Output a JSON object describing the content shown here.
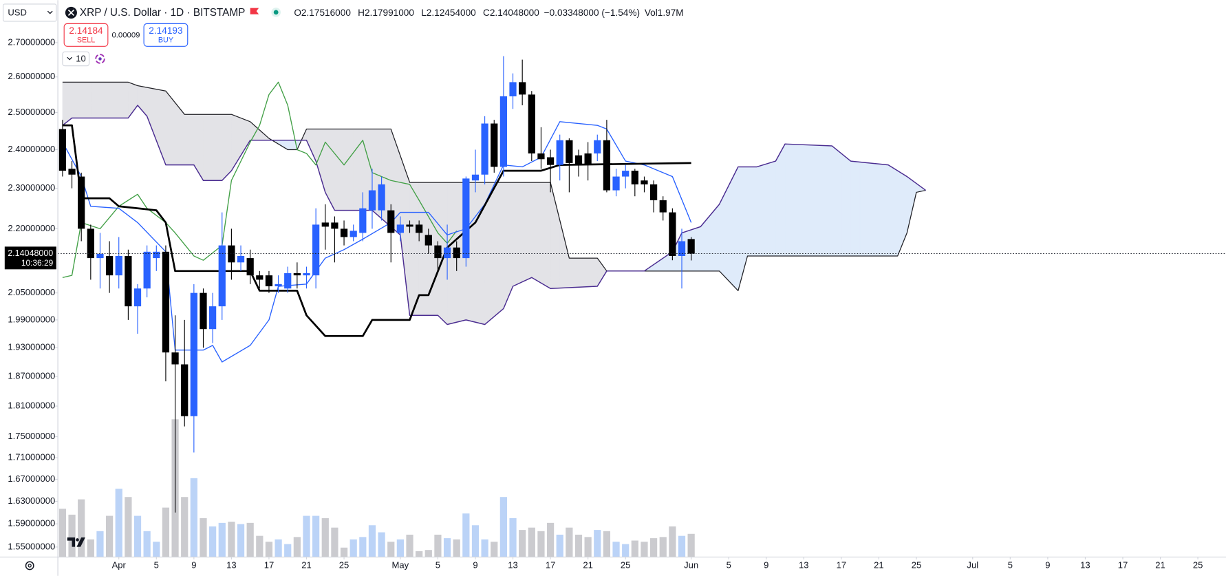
{
  "toolbar": {
    "currency": "USD",
    "symbol": "XRP / U.S. Dollar · 1D · BITSTAMP",
    "ohlc": [
      {
        "key": "O",
        "value": "2.17516000"
      },
      {
        "key": "H",
        "value": "2.17991000"
      },
      {
        "key": "L",
        "value": "2.12454000"
      },
      {
        "key": "C",
        "value": "2.14048000"
      }
    ],
    "change": "−0.03348000 (−1.54%)",
    "volume_key": "Vol",
    "volume": "1.97M"
  },
  "trade": {
    "sell_price": "2.14184",
    "sell": "SELL",
    "spread": "0.00009",
    "buy_price": "2.14193",
    "buy": "BUY",
    "indicator_count": "10"
  },
  "chart_data": {
    "type": "candlestick",
    "yscale": "log",
    "x": [
      "03-26",
      "03-27",
      "03-28",
      "03-29",
      "03-30",
      "03-31",
      "04-01",
      "04-02",
      "04-03",
      "04-04",
      "04-05",
      "04-06",
      "04-07",
      "04-08",
      "04-09",
      "04-10",
      "04-11",
      "04-12",
      "04-13",
      "04-14",
      "04-15",
      "04-16",
      "04-17",
      "04-18",
      "04-19",
      "04-20",
      "04-21",
      "04-22",
      "04-23",
      "04-24",
      "04-25",
      "04-26",
      "04-27",
      "04-28",
      "04-29",
      "04-30",
      "05-01",
      "05-02",
      "05-03",
      "05-04",
      "05-05",
      "05-06",
      "05-07",
      "05-08",
      "05-09",
      "05-10",
      "05-11",
      "05-12",
      "05-13",
      "05-14",
      "05-15",
      "05-16",
      "05-17",
      "05-18",
      "05-19",
      "05-20",
      "05-21",
      "05-22",
      "05-23",
      "05-24",
      "05-25",
      "05-26",
      "05-27",
      "05-28",
      "05-29",
      "05-30",
      "05-31",
      "06-01"
    ],
    "open": [
      2.455,
      2.35,
      2.33,
      2.2,
      2.13,
      2.135,
      2.09,
      2.135,
      2.02,
      2.06,
      2.13,
      2.145,
      1.92,
      1.895,
      1.79,
      2.05,
      1.97,
      2.02,
      2.16,
      2.12,
      2.13,
      2.09,
      2.09,
      2.065,
      2.06,
      2.095,
      2.09,
      2.09,
      2.215,
      2.215,
      2.2,
      2.18,
      2.19,
      2.245,
      2.245,
      2.245,
      2.19,
      2.21,
      2.21,
      2.185,
      2.16,
      2.13,
      2.155,
      2.13,
      2.32,
      2.335,
      2.47,
      2.355,
      2.545,
      2.585,
      2.55,
      2.39,
      2.38,
      2.36,
      2.425,
      2.385,
      2.39,
      2.39,
      2.425,
      2.295,
      2.33,
      2.345,
      2.32,
      2.31,
      2.27,
      2.24,
      2.135,
      2.17516
    ],
    "high": [
      2.48,
      2.37,
      2.34,
      2.21,
      2.19,
      2.17,
      2.18,
      2.15,
      2.07,
      2.16,
      2.16,
      2.16,
      2.0,
      1.99,
      2.07,
      2.06,
      2.05,
      2.24,
      2.2,
      2.16,
      2.15,
      2.1,
      2.1,
      2.09,
      2.11,
      2.12,
      2.11,
      2.25,
      2.26,
      2.23,
      2.22,
      2.21,
      2.29,
      2.35,
      2.33,
      2.26,
      2.23,
      2.22,
      2.22,
      2.2,
      2.17,
      2.21,
      2.17,
      2.33,
      2.4,
      2.49,
      2.48,
      2.66,
      2.61,
      2.65,
      2.56,
      2.46,
      2.4,
      2.44,
      2.43,
      2.4,
      2.42,
      2.44,
      2.48,
      2.35,
      2.36,
      2.35,
      2.33,
      2.32,
      2.28,
      2.25,
      2.2,
      2.17991
    ],
    "low": [
      2.33,
      2.3,
      2.17,
      2.08,
      2.06,
      2.05,
      2.06,
      1.99,
      1.96,
      2.04,
      2.1,
      1.86,
      1.61,
      1.77,
      1.72,
      1.93,
      1.94,
      1.99,
      2.08,
      2.1,
      2.07,
      2.06,
      2.05,
      2.05,
      2.05,
      2.06,
      2.06,
      2.06,
      2.15,
      2.12,
      2.16,
      2.17,
      2.17,
      2.2,
      2.22,
      2.12,
      2.17,
      2.19,
      2.17,
      2.14,
      2.1,
      2.08,
      2.1,
      2.11,
      2.29,
      2.31,
      2.34,
      2.33,
      2.51,
      2.52,
      2.37,
      2.35,
      2.29,
      2.32,
      2.29,
      2.33,
      2.32,
      2.37,
      2.29,
      2.28,
      2.3,
      2.28,
      2.29,
      2.24,
      2.22,
      2.125,
      2.06,
      2.12454
    ],
    "close": [
      2.345,
      2.335,
      2.2,
      2.13,
      2.14,
      2.09,
      2.135,
      2.02,
      2.06,
      2.145,
      2.145,
      1.92,
      1.895,
      1.79,
      2.05,
      1.97,
      2.02,
      2.16,
      2.12,
      2.135,
      2.09,
      2.08,
      2.065,
      2.07,
      2.095,
      2.09,
      2.095,
      2.21,
      2.205,
      2.2,
      2.18,
      2.195,
      2.25,
      2.295,
      2.31,
      2.19,
      2.21,
      2.205,
      2.19,
      2.16,
      2.13,
      2.155,
      2.13,
      2.325,
      2.335,
      2.47,
      2.355,
      2.545,
      2.585,
      2.55,
      2.39,
      2.375,
      2.36,
      2.425,
      2.365,
      2.36,
      2.36,
      2.425,
      2.295,
      2.33,
      2.345,
      2.31,
      2.31,
      2.27,
      2.24,
      2.135,
      2.17,
      2.14048
    ],
    "up_color": "#2962ff",
    "down_color": "#000000",
    "volume": {
      "values": [
        4.1,
        3.6,
        4.9,
        1.5,
        2.2,
        3.5,
        5.8,
        5.1,
        3.5,
        2.2,
        1.3,
        4.2,
        11.7,
        5.1,
        6.7,
        3.3,
        2.6,
        2.9,
        3.0,
        2.8,
        2.9,
        1.8,
        1.3,
        1.5,
        1.1,
        1.7,
        3.5,
        3.5,
        3.3,
        2.5,
        0.8,
        1.5,
        1.7,
        2.7,
        2.1,
        1.3,
        1.5,
        1.9,
        0.5,
        0.6,
        1.9,
        1.6,
        1.5,
        3.7,
        2.7,
        1.5,
        1.3,
        5.1,
        3.3,
        2.3,
        2.5,
        2.2,
        2.9,
        1.9,
        2.5,
        1.9,
        1.7,
        2.3,
        2.2,
        1.3,
        1.1,
        1.4,
        1.3,
        1.6,
        1.7,
        2.6,
        1.8,
        1.97
      ],
      "ylim": [
        0,
        47.3
      ],
      "up_color": "#bbd3f7",
      "down_color": "#cbcbcf"
    },
    "tenkan": {
      "color": "#2962ff",
      "width": 1.2,
      "x": [
        "03-26",
        "03-28",
        "03-29",
        "04-01",
        "04-03",
        "04-06",
        "04-07",
        "04-10",
        "04-11",
        "04-12",
        "04-15",
        "04-17",
        "04-18",
        "04-21",
        "04-23",
        "04-25",
        "04-27",
        "04-30",
        "05-01",
        "05-04",
        "05-06",
        "05-08",
        "05-10",
        "05-12",
        "05-14",
        "05-16",
        "05-18",
        "05-22",
        "05-23",
        "05-25",
        "05-27",
        "05-30",
        "06-01"
      ],
      "values": [
        2.42,
        2.33,
        2.255,
        2.25,
        2.215,
        2.145,
        1.925,
        1.925,
        1.935,
        1.9,
        1.935,
        1.99,
        2.065,
        2.07,
        2.13,
        2.15,
        2.175,
        2.215,
        2.24,
        2.24,
        2.185,
        2.2,
        2.26,
        2.36,
        2.355,
        2.38,
        2.475,
        2.465,
        2.455,
        2.37,
        2.36,
        2.33,
        2.215
      ]
    },
    "kijun": {
      "color": "#000000",
      "width": 2.4,
      "x": [
        "03-26",
        "03-27",
        "03-28",
        "03-31",
        "04-01",
        "04-05",
        "04-06",
        "04-07",
        "04-15",
        "04-16",
        "04-20",
        "04-21",
        "04-23",
        "04-27",
        "04-28",
        "05-02",
        "05-03",
        "05-04",
        "05-06",
        "05-08",
        "05-09",
        "05-12",
        "05-16",
        "05-18",
        "06-01"
      ],
      "values": [
        2.465,
        2.465,
        2.275,
        2.275,
        2.255,
        2.245,
        2.215,
        2.1,
        2.1,
        2.055,
        2.055,
        2.0,
        1.955,
        1.955,
        1.99,
        1.99,
        2.045,
        2.045,
        2.155,
        2.195,
        2.215,
        2.345,
        2.345,
        2.36,
        2.365
      ]
    },
    "chikou": {
      "color": "#43a047",
      "width": 1.2,
      "x": [
        "03-26",
        "03-27",
        "03-28",
        "03-30",
        "04-01",
        "04-02",
        "04-03",
        "04-04",
        "04-06",
        "04-07",
        "04-09",
        "04-10",
        "04-12",
        "04-13",
        "04-15",
        "04-16",
        "04-17",
        "04-18",
        "04-19",
        "04-20",
        "04-21",
        "04-22",
        "04-23",
        "04-25",
        "04-27",
        "04-28",
        "04-30",
        "05-02",
        "05-03",
        "05-05",
        "05-06",
        "05-07"
      ],
      "values": [
        2.085,
        2.09,
        2.215,
        2.2,
        2.255,
        2.27,
        2.285,
        2.25,
        2.215,
        2.19,
        2.135,
        2.125,
        2.16,
        2.32,
        2.42,
        2.465,
        2.55,
        2.585,
        2.52,
        2.4,
        2.39,
        2.36,
        2.42,
        2.36,
        2.425,
        2.34,
        2.32,
        2.31,
        2.27,
        2.19,
        2.165,
        2.195
      ]
    },
    "span_a": {
      "color": "#4b2d91",
      "width": 1.3,
      "x": [
        "03-26",
        "03-27",
        "04-02",
        "04-03",
        "04-04",
        "04-06",
        "04-09",
        "04-10",
        "04-12",
        "04-13",
        "04-15",
        "04-21",
        "04-22",
        "04-23",
        "04-24",
        "04-28",
        "05-01",
        "05-02",
        "05-05",
        "05-06",
        "05-08",
        "05-10",
        "05-12",
        "05-13",
        "05-15",
        "05-17",
        "05-22",
        "05-23",
        "05-27",
        "05-30",
        "05-31",
        "06-02",
        "06-04",
        "06-06",
        "06-08",
        "06-10",
        "06-11",
        "06-16",
        "06-18",
        "06-22",
        "06-24",
        "06-26"
      ],
      "values": [
        2.465,
        2.485,
        2.485,
        2.52,
        2.49,
        2.36,
        2.36,
        2.32,
        2.32,
        2.345,
        2.425,
        2.425,
        2.37,
        2.29,
        2.245,
        2.245,
        2.185,
        2.0,
        2.0,
        1.98,
        1.99,
        1.98,
        2.015,
        2.065,
        2.085,
        2.06,
        2.065,
        2.1,
        2.1,
        2.145,
        2.19,
        2.205,
        2.26,
        2.355,
        2.355,
        2.37,
        2.415,
        2.41,
        2.37,
        2.36,
        2.33,
        2.295
      ]
    },
    "span_b": {
      "color": "#1f1f24",
      "width": 1.1,
      "x": [
        "03-26",
        "04-02",
        "04-03",
        "04-06",
        "04-08",
        "04-13",
        "04-15",
        "04-17",
        "04-19",
        "04-20",
        "04-21",
        "04-30",
        "05-02",
        "05-17",
        "05-19",
        "05-22",
        "05-23",
        "06-04",
        "06-06",
        "06-07",
        "06-23",
        "06-24",
        "06-25",
        "06-26"
      ],
      "values": [
        2.585,
        2.585,
        2.575,
        2.56,
        2.495,
        2.495,
        2.475,
        2.43,
        2.4,
        2.4,
        2.455,
        2.455,
        2.315,
        2.315,
        2.13,
        2.13,
        2.1,
        2.1,
        2.055,
        2.135,
        2.135,
        2.19,
        2.29,
        2.295
      ]
    },
    "cloud_colors": {
      "bullish": "#deeafa",
      "bearish": "#e2e2e6"
    },
    "last_price": {
      "value": 2.14048,
      "label": "2.14048000",
      "countdown": "10:36:29"
    },
    "ylim": [
      1.533,
      2.829
    ],
    "yticks": [
      {
        "value": 2.7,
        "label": "2.70000000"
      },
      {
        "value": 2.6,
        "label": "2.60000000"
      },
      {
        "value": 2.5,
        "label": "2.50000000"
      },
      {
        "value": 2.4,
        "label": "2.40000000"
      },
      {
        "value": 2.3,
        "label": "2.30000000"
      },
      {
        "value": 2.2,
        "label": "2.20000000"
      },
      {
        "value": 2.05,
        "label": "2.05000000"
      },
      {
        "value": 1.99,
        "label": "1.99000000"
      },
      {
        "value": 1.93,
        "label": "1.93000000"
      },
      {
        "value": 1.87,
        "label": "1.87000000"
      },
      {
        "value": 1.81,
        "label": "1.81000000"
      },
      {
        "value": 1.75,
        "label": "1.75000000"
      },
      {
        "value": 1.71,
        "label": "1.71000000"
      },
      {
        "value": 1.67,
        "label": "1.67000000"
      },
      {
        "value": 1.63,
        "label": "1.63000000"
      },
      {
        "value": 1.59,
        "label": "1.59000000"
      },
      {
        "value": 1.55,
        "label": "1.55000000"
      }
    ],
    "xlim": [
      "03-25",
      "07-29"
    ],
    "xticks": [
      {
        "value": "04-01",
        "label": "Apr"
      },
      {
        "value": "04-05",
        "label": "5"
      },
      {
        "value": "04-09",
        "label": "9"
      },
      {
        "value": "04-13",
        "label": "13"
      },
      {
        "value": "04-17",
        "label": "17"
      },
      {
        "value": "04-21",
        "label": "21"
      },
      {
        "value": "04-25",
        "label": "25"
      },
      {
        "value": "05-01",
        "label": "May"
      },
      {
        "value": "05-05",
        "label": "5"
      },
      {
        "value": "05-09",
        "label": "9"
      },
      {
        "value": "05-13",
        "label": "13"
      },
      {
        "value": "05-17",
        "label": "17"
      },
      {
        "value": "05-21",
        "label": "21"
      },
      {
        "value": "05-25",
        "label": "25"
      },
      {
        "value": "06-01",
        "label": "Jun"
      },
      {
        "value": "06-05",
        "label": "5"
      },
      {
        "value": "06-09",
        "label": "9"
      },
      {
        "value": "06-13",
        "label": "13"
      },
      {
        "value": "06-17",
        "label": "17"
      },
      {
        "value": "06-21",
        "label": "21"
      },
      {
        "value": "06-25",
        "label": "25"
      },
      {
        "value": "07-01",
        "label": "Jul"
      },
      {
        "value": "07-05",
        "label": "5"
      },
      {
        "value": "07-09",
        "label": "9"
      },
      {
        "value": "07-13",
        "label": "13"
      },
      {
        "value": "07-17",
        "label": "17"
      },
      {
        "value": "07-21",
        "label": "21"
      },
      {
        "value": "07-25",
        "label": "25"
      }
    ]
  }
}
